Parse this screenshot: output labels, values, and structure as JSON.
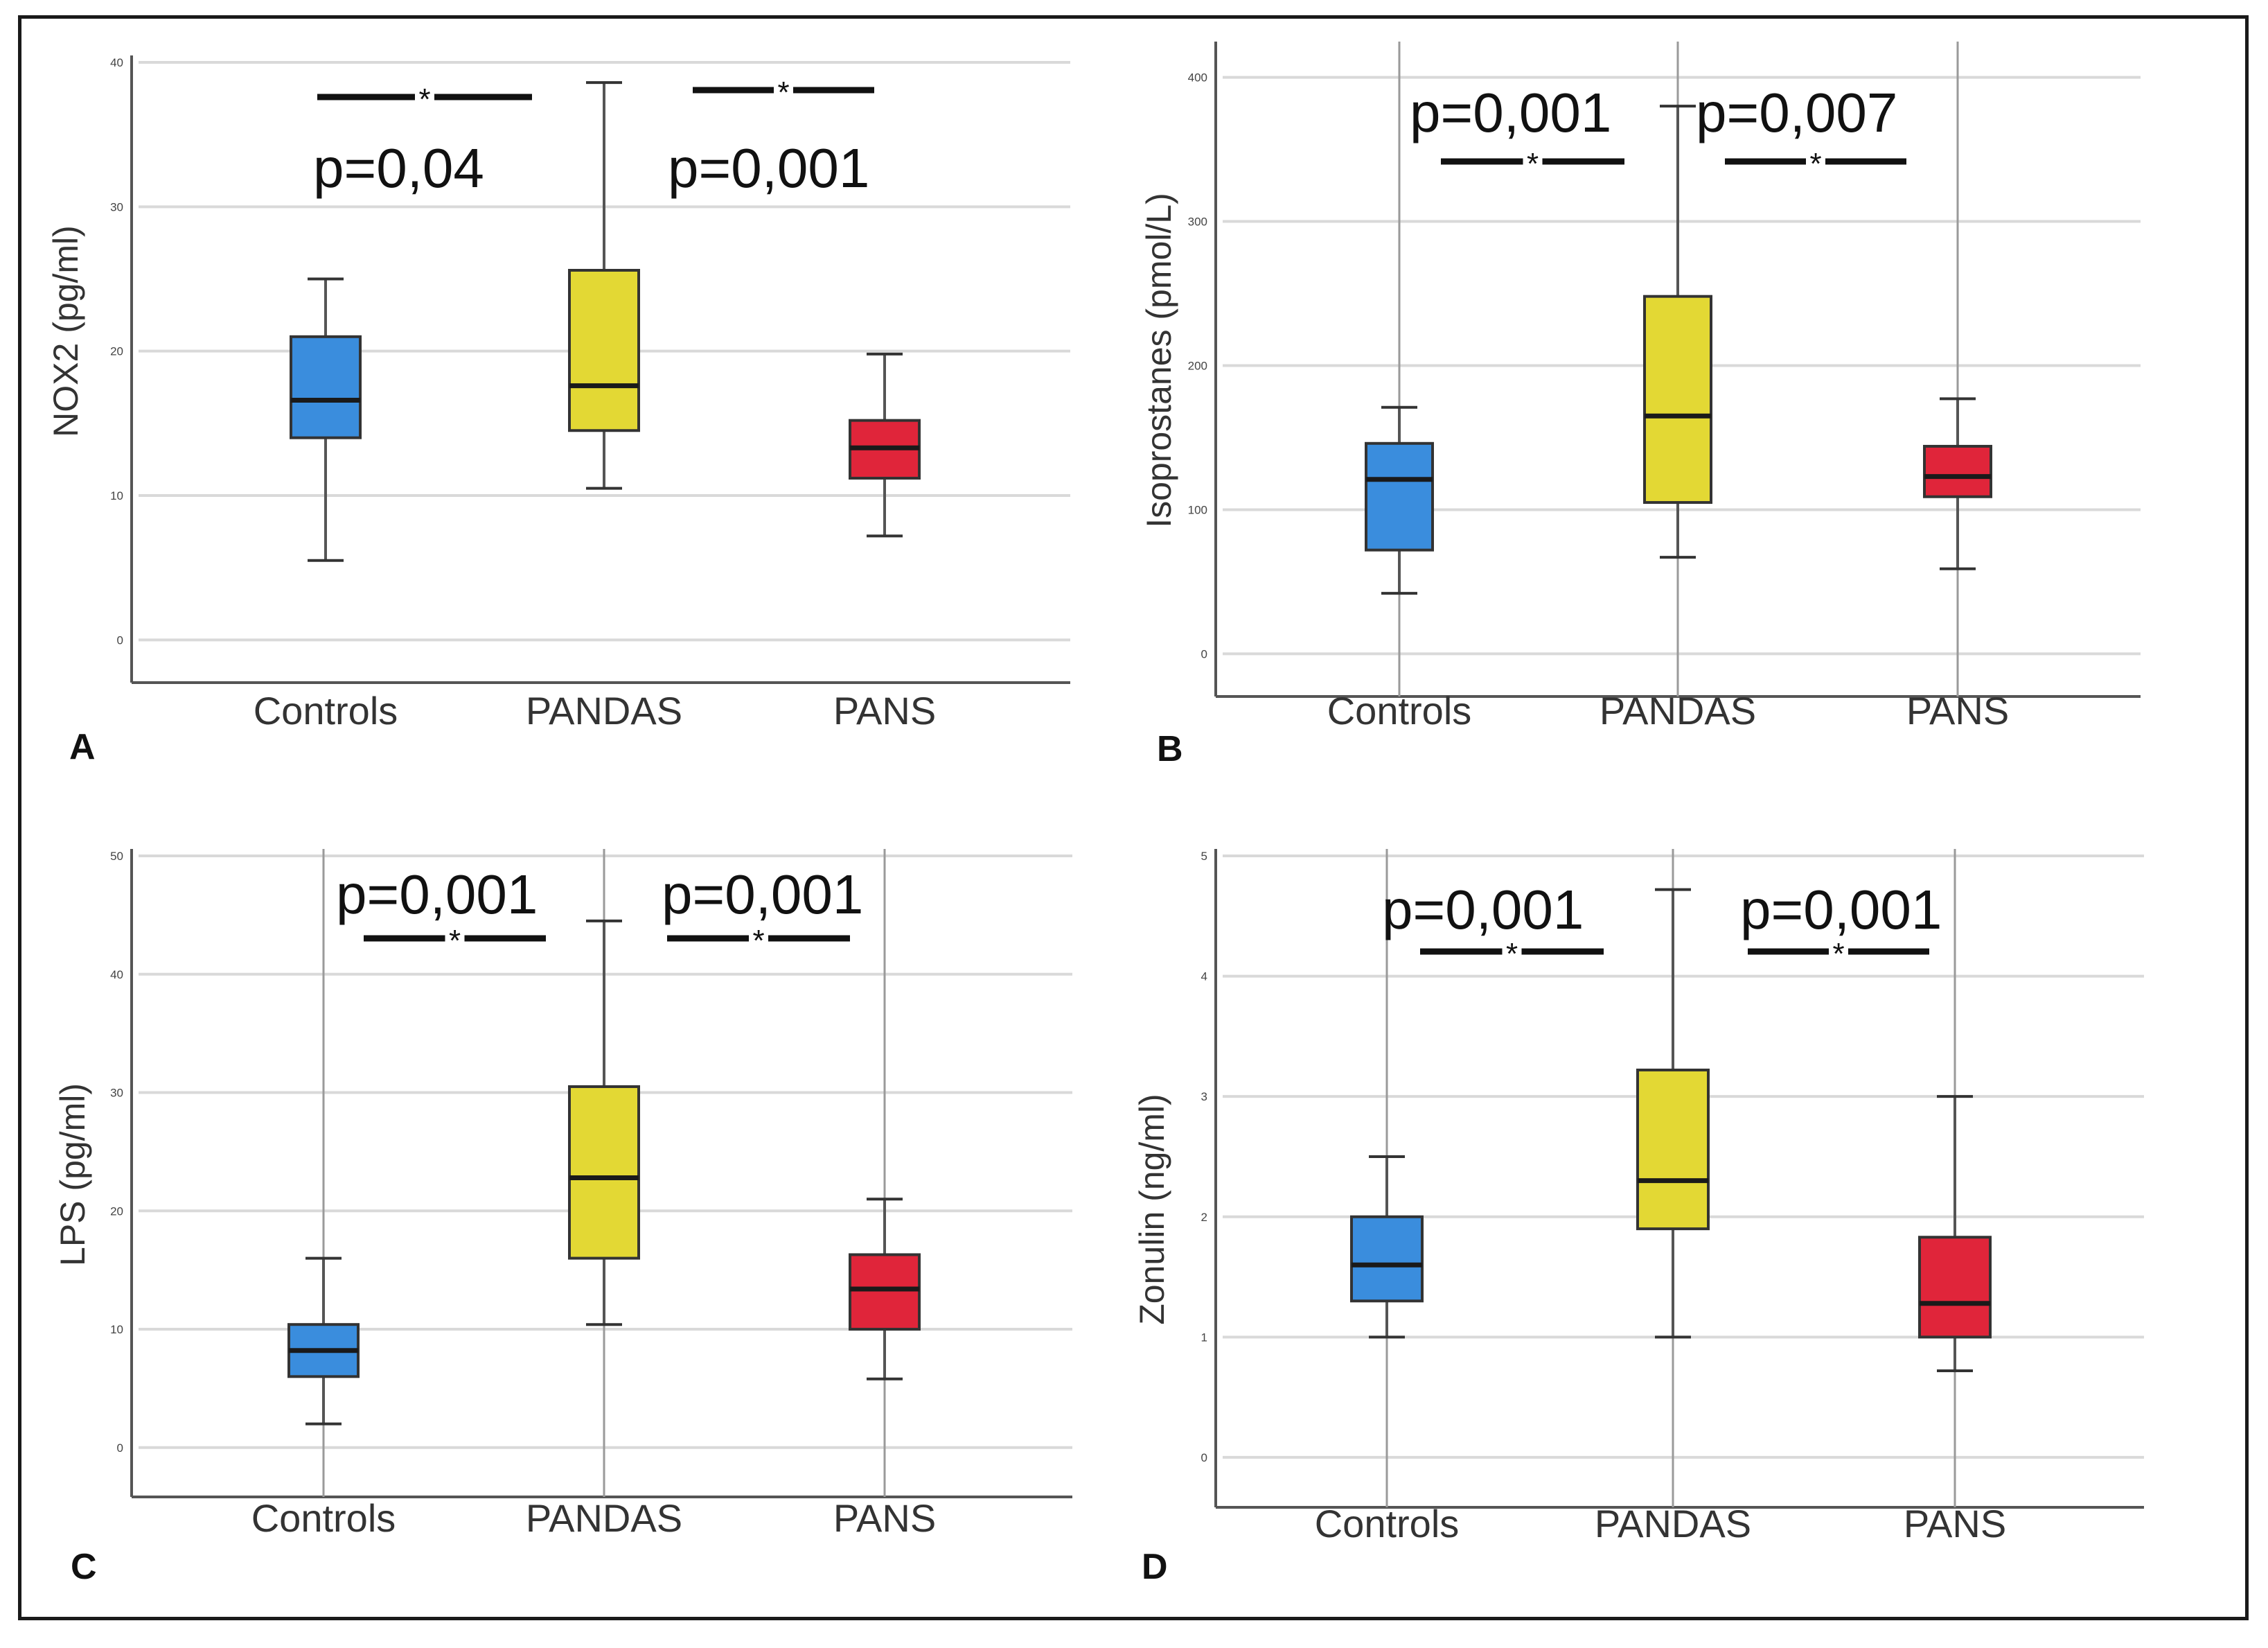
{
  "colors": {
    "Controls": "#3a8ddd",
    "PANDAS": "#e3d834",
    "PANS": "#e0253a"
  },
  "chart_data": [
    {
      "type": "box",
      "panel": "A",
      "ylabel": "NOX2 (pg/ml)",
      "ylim": [
        -2,
        40
      ],
      "yticks": [
        0,
        10,
        20,
        30,
        40
      ],
      "categories": [
        "Controls",
        "PANDAS",
        "PANS"
      ],
      "boxes": [
        {
          "group": "Controls",
          "min": 5.5,
          "q1": 14,
          "median": 16.6,
          "q3": 21,
          "max": 25
        },
        {
          "group": "PANDAS",
          "min": 10.5,
          "q1": 14.5,
          "median": 17.6,
          "q3": 25.6,
          "max": 38.6
        },
        {
          "group": "PANS",
          "min": 7.2,
          "q1": 11.2,
          "median": 13.3,
          "q3": 15.2,
          "max": 19.8
        }
      ],
      "vertical_lines": false,
      "comparisons": [
        {
          "between": [
            "Controls",
            "PANDAS"
          ],
          "label": "p=0,04",
          "marker": "*",
          "position": "below"
        },
        {
          "between": [
            "PANDAS",
            "PANS"
          ],
          "label": "p=0,001",
          "marker": "*",
          "position": "below"
        }
      ]
    },
    {
      "type": "box",
      "panel": "B",
      "ylabel": "Isoprostanes (pmol/L)",
      "ylim": [
        -20,
        420
      ],
      "yticks": [
        0,
        100,
        200,
        300,
        400
      ],
      "categories": [
        "Controls",
        "PANDAS",
        "PANS"
      ],
      "boxes": [
        {
          "group": "Controls",
          "min": 42,
          "q1": 72,
          "median": 121,
          "q3": 146,
          "max": 171
        },
        {
          "group": "PANDAS",
          "min": 67,
          "q1": 105,
          "median": 165,
          "q3": 248,
          "max": 380
        },
        {
          "group": "PANS",
          "min": 59,
          "q1": 109,
          "median": 123,
          "q3": 144,
          "max": 177
        }
      ],
      "vertical_lines": true,
      "comparisons": [
        {
          "between": [
            "Controls",
            "PANDAS"
          ],
          "label": "p=0,001",
          "marker": "*",
          "position": "above"
        },
        {
          "between": [
            "PANDAS",
            "PANS"
          ],
          "label": "p=0,007",
          "marker": "*",
          "position": "above"
        }
      ]
    },
    {
      "type": "box",
      "panel": "C",
      "ylabel": "LPS (pg/ml)",
      "ylim": [
        -3,
        50
      ],
      "yticks": [
        0,
        10,
        20,
        30,
        40,
        50
      ],
      "categories": [
        "Controls",
        "PANDAS",
        "PANS"
      ],
      "boxes": [
        {
          "group": "Controls",
          "min": 2,
          "q1": 6,
          "median": 8.2,
          "q3": 10.4,
          "max": 16
        },
        {
          "group": "PANDAS",
          "min": 10.4,
          "q1": 16,
          "median": 22.8,
          "q3": 30.5,
          "max": 44.5
        },
        {
          "group": "PANS",
          "min": 5.8,
          "q1": 10,
          "median": 13.4,
          "q3": 16.3,
          "max": 21
        }
      ],
      "vertical_lines": true,
      "comparisons": [
        {
          "between": [
            "Controls",
            "PANDAS"
          ],
          "label": "p=0,001",
          "marker": "*",
          "position": "above"
        },
        {
          "between": [
            "PANDAS",
            "PANS"
          ],
          "label": "p=0,001",
          "marker": "*",
          "position": "above"
        }
      ]
    },
    {
      "type": "box",
      "panel": "D",
      "ylabel": "Zonulin (ng/ml)",
      "ylim": [
        -0.3,
        5
      ],
      "yticks": [
        0,
        1,
        2,
        3,
        4,
        5
      ],
      "categories": [
        "Controls",
        "PANDAS",
        "PANS"
      ],
      "boxes": [
        {
          "group": "Controls",
          "min": 1.0,
          "q1": 1.3,
          "median": 1.6,
          "q3": 2.0,
          "max": 2.5
        },
        {
          "group": "PANDAS",
          "min": 1.0,
          "q1": 1.9,
          "median": 2.3,
          "q3": 3.22,
          "max": 4.72
        },
        {
          "group": "PANS",
          "min": 0.72,
          "q1": 1.0,
          "median": 1.28,
          "q3": 1.83,
          "max": 3.0
        }
      ],
      "vertical_lines": true,
      "comparisons": [
        {
          "between": [
            "Controls",
            "PANDAS"
          ],
          "label": "p=0,001",
          "marker": "*",
          "position": "above"
        },
        {
          "between": [
            "PANDAS",
            "PANS"
          ],
          "label": "p=0,001",
          "marker": "*",
          "position": "above"
        }
      ]
    }
  ]
}
